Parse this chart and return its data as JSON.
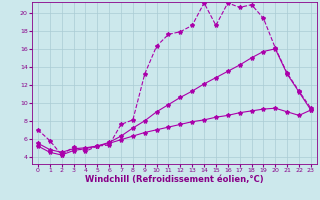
{
  "xlabel": "Windchill (Refroidissement éolien,°C)",
  "bg_color": "#cce8ec",
  "grid_color": "#aaccd4",
  "line_color": "#aa00aa",
  "xlim": [
    -0.5,
    23.5
  ],
  "ylim": [
    3.2,
    21.2
  ],
  "xticks": [
    0,
    1,
    2,
    3,
    4,
    5,
    6,
    7,
    8,
    9,
    10,
    11,
    12,
    13,
    14,
    15,
    16,
    17,
    18,
    19,
    20,
    21,
    22,
    23
  ],
  "yticks": [
    4,
    6,
    8,
    10,
    12,
    14,
    16,
    18,
    20
  ],
  "series1_x": [
    0,
    1,
    2,
    3,
    4,
    5,
    6,
    7,
    8,
    9,
    10,
    11,
    12,
    13,
    14,
    15,
    16,
    17,
    18,
    19,
    20,
    21,
    22,
    23
  ],
  "series1_y": [
    7.0,
    5.8,
    4.2,
    5.1,
    4.6,
    5.2,
    5.3,
    7.6,
    8.1,
    13.2,
    16.3,
    17.6,
    17.9,
    18.6,
    21.1,
    18.6,
    21.1,
    20.6,
    20.9,
    19.4,
    16.1,
    13.3,
    11.3,
    9.4
  ],
  "series2_x": [
    0,
    1,
    2,
    3,
    4,
    5,
    6,
    7,
    8,
    9,
    10,
    11,
    12,
    13,
    14,
    15,
    16,
    17,
    18,
    19,
    20,
    21,
    22,
    23
  ],
  "series2_y": [
    5.2,
    4.5,
    4.2,
    4.7,
    4.9,
    5.2,
    5.6,
    6.3,
    7.2,
    8.0,
    9.0,
    9.8,
    10.6,
    11.3,
    12.1,
    12.8,
    13.5,
    14.2,
    15.0,
    15.7,
    16.0,
    13.2,
    11.2,
    9.2
  ],
  "series3_x": [
    0,
    1,
    2,
    3,
    4,
    5,
    6,
    7,
    8,
    9,
    10,
    11,
    12,
    13,
    14,
    15,
    16,
    17,
    18,
    19,
    20,
    21,
    22,
    23
  ],
  "series3_y": [
    5.5,
    4.8,
    4.5,
    4.9,
    5.0,
    5.2,
    5.5,
    5.9,
    6.3,
    6.7,
    7.0,
    7.3,
    7.6,
    7.9,
    8.1,
    8.4,
    8.6,
    8.9,
    9.1,
    9.3,
    9.4,
    9.0,
    8.6,
    9.2
  ],
  "marker": "*",
  "markersize": 3,
  "linewidth": 0.8,
  "tick_fontsize": 4.5,
  "xlabel_fontsize": 6.0,
  "label_color": "#880088"
}
